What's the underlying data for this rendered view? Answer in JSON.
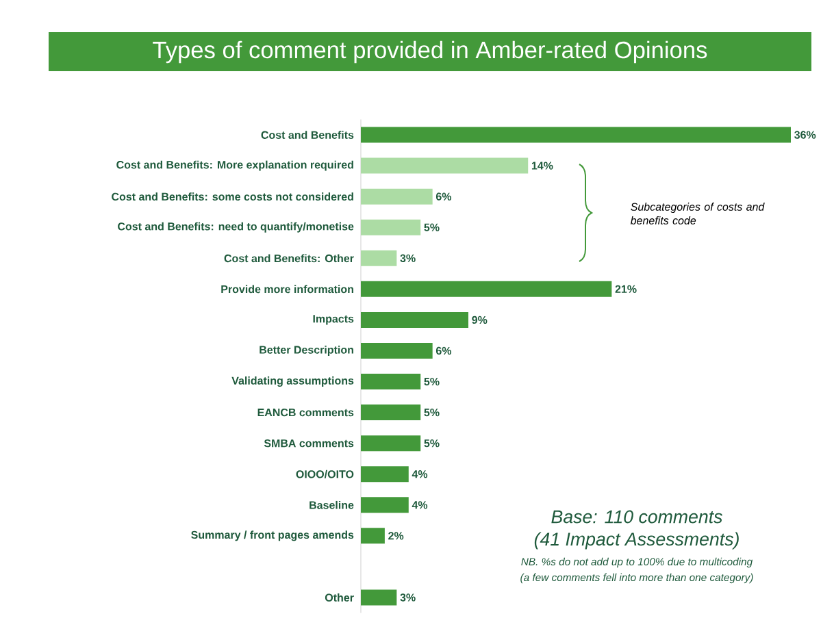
{
  "chart_data": {
    "type": "bar",
    "orientation": "horizontal",
    "title": "Types of comment provided in Amber-rated Opinions",
    "categories": [
      "Cost and Benefits",
      "Cost and Benefits: More explanation required",
      "Cost and Benefits: some costs not considered",
      "Cost and Benefits: need to quantify/monetise",
      "Cost and Benefits: Other",
      "Provide more information",
      "Impacts",
      "Better Description",
      "Validating assumptions",
      "EANCB comments",
      "SMBA comments",
      "OIOO/OITO",
      "Baseline",
      "Summary / front pages amends",
      null,
      "Other"
    ],
    "values": [
      36,
      14,
      6,
      5,
      3,
      21,
      9,
      6,
      5,
      5,
      5,
      4,
      4,
      2,
      null,
      3
    ],
    "value_labels": [
      "36%",
      "14%",
      "6%",
      "5%",
      "3%",
      "21%",
      "9%",
      "6%",
      "5%",
      "5%",
      "5%",
      "4%",
      "4%",
      "2%",
      null,
      "3%"
    ],
    "colors": [
      "#43993a",
      "#acdca4",
      "#acdca4",
      "#acdca4",
      "#acdca4",
      "#43993a",
      "#43993a",
      "#43993a",
      "#43993a",
      "#43993a",
      "#43993a",
      "#43993a",
      "#43993a",
      "#43993a",
      "#43993a",
      "#43993a"
    ],
    "annotations": [
      "Subcategories of costs and benefits code",
      "Base: 110 comments",
      "(41 Impact Assessments)",
      "NB. %s do not add up to 100% due to multicoding",
      "(a few comments fell into more than one category)"
    ],
    "stacked": false
  }
}
